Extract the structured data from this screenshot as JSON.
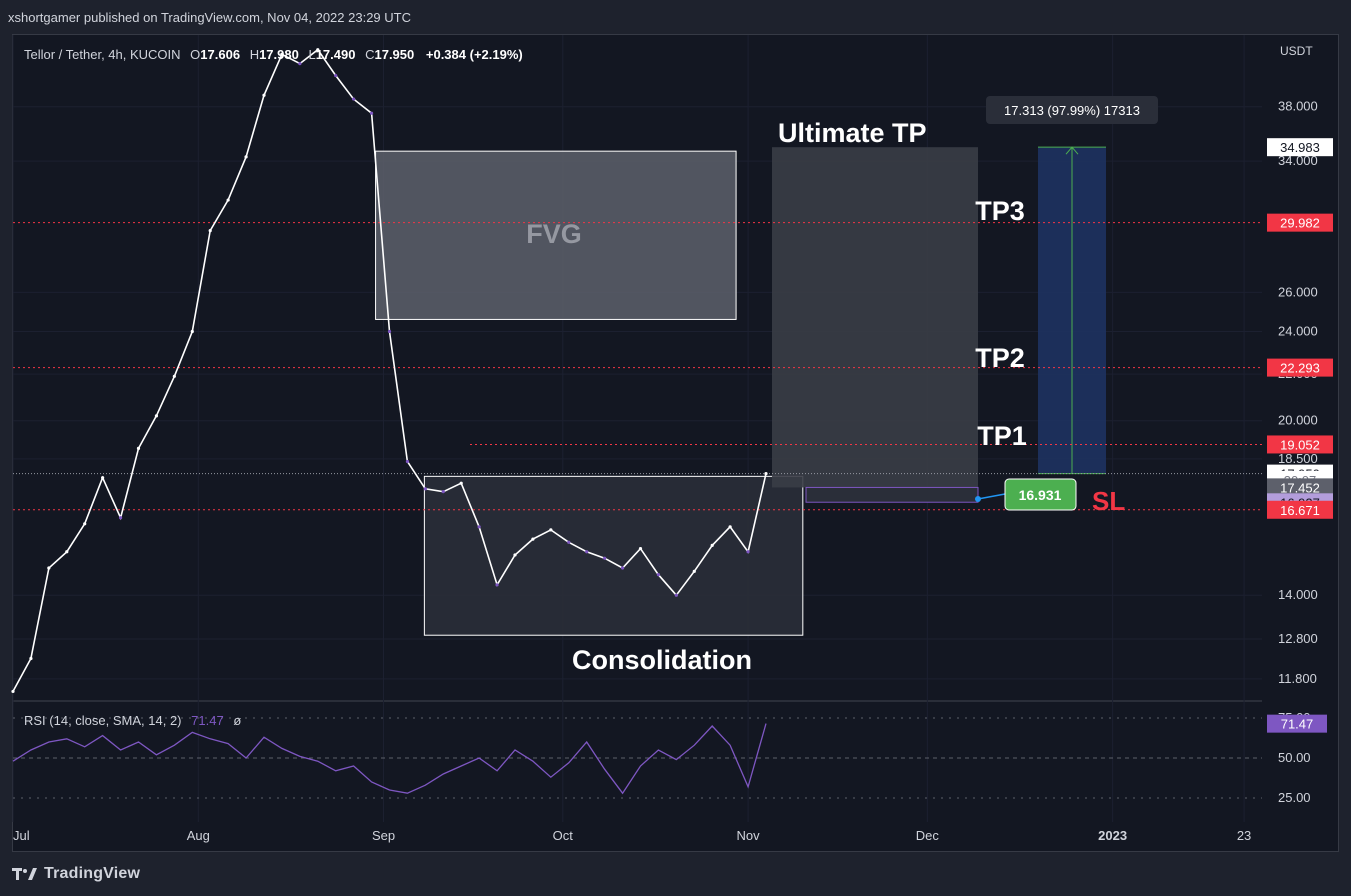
{
  "publisher": "xshortgamer published on TradingView.com, Nov 04, 2022 23:29 UTC",
  "symbol_line": {
    "name": "Tellor / Tether, 4h, KUCOIN",
    "open_label": "O",
    "open": "17.606",
    "high_label": "H",
    "high": "17.980",
    "low_label": "L",
    "low": "17.490",
    "close_label": "C",
    "close": "17.950",
    "change": "+0.384 (+2.19%)"
  },
  "currency": "USDT",
  "annotations": {
    "fvg": "FVG",
    "consolidation": "Consolidation",
    "ultimate_tp": "Ultimate TP",
    "tp3": "TP3",
    "tp2": "TP2",
    "tp1": "TP1",
    "sl": "SL",
    "measure_label": "17.313 (97.99%) 17313",
    "entry_badge": "16.931"
  },
  "price_badges": [
    {
      "key": "ultimate",
      "text": "34.983",
      "value": 34.983,
      "bg": "#ffffff",
      "fg": "#131722"
    },
    {
      "key": "tp3",
      "text": "29.982",
      "value": 29.982,
      "bg": "#f23645",
      "fg": "#ffffff"
    },
    {
      "key": "tp2",
      "text": "22.293",
      "value": 22.293,
      "bg": "#f23645",
      "fg": "#ffffff"
    },
    {
      "key": "tp1",
      "text": "19.052",
      "value": 19.052,
      "bg": "#f23645",
      "fg": "#ffffff"
    },
    {
      "key": "last",
      "text": "17.950",
      "value": 17.95,
      "bg": "#ffffff",
      "fg": "#131722"
    },
    {
      "key": "countdown",
      "text": "30:07",
      "value": 17.72,
      "bg": "#ffffff",
      "fg": "#787b86"
    },
    {
      "key": "level",
      "text": "17.452",
      "value": 17.452,
      "bg": "#5d606b",
      "fg": "#ffffff"
    },
    {
      "key": "entry",
      "text": "16.927",
      "value": 16.927,
      "bg": "#b39ddb",
      "fg": "#131722"
    },
    {
      "key": "sl",
      "text": "16.671",
      "value": 16.671,
      "bg": "#f23645",
      "fg": "#ffffff"
    }
  ],
  "rsi": {
    "label": "RSI (14, close, SMA, 14, 2)",
    "value": "71.47",
    "extra": "ø",
    "badge": "71.47",
    "ticks": [
      "75.00",
      "50.00",
      "25.00"
    ],
    "color": "#7e57c2"
  },
  "footer": "TradingView",
  "colors": {
    "bg": "#131722",
    "grid": "#1c2030",
    "candle": "#ffffff",
    "candle_down": "#7e57c2",
    "red": "#f23645",
    "green": "#4caf50",
    "fvg_fill": "#5d606b",
    "measure_fill": "#1e3260"
  },
  "chart_data": {
    "type": "line",
    "title": "Tellor / Tether, 4h, KUCOIN",
    "y_scale": "log",
    "ylim": [
      11.3,
      44.0
    ],
    "y_ticks": [
      38.0,
      34.0,
      26.0,
      24.0,
      22.0,
      20.0,
      18.5,
      14.0,
      12.8,
      11.8
    ],
    "y_tick_labels": [
      "38.000",
      "34.000",
      "26.000",
      "24.000",
      "22.000",
      "20.000",
      "18.500",
      "14.000",
      "12.800",
      "11.800"
    ],
    "x_ticks": [
      "Jul",
      "Aug",
      "Sep",
      "Oct",
      "Nov",
      "Dec",
      "2023",
      "23"
    ],
    "x_tick_dates": [
      "2022-07-01",
      "2022-08-01",
      "2022-09-01",
      "2022-10-01",
      "2022-11-01",
      "2022-12-01",
      "2023-01-01",
      "2023-01-23"
    ],
    "xlim": [
      "2022-07-01",
      "2023-01-26"
    ],
    "series": [
      {
        "dates": [
          "2022-07-01",
          "2022-07-04",
          "2022-07-07",
          "2022-07-10",
          "2022-07-13",
          "2022-07-16",
          "2022-07-19",
          "2022-07-22",
          "2022-07-25",
          "2022-07-28",
          "2022-07-31",
          "2022-08-03",
          "2022-08-06",
          "2022-08-09",
          "2022-08-12",
          "2022-08-15",
          "2022-08-18",
          "2022-08-21",
          "2022-08-24",
          "2022-08-27",
          "2022-08-30",
          "2022-09-02",
          "2022-09-05",
          "2022-09-08",
          "2022-09-11",
          "2022-09-14",
          "2022-09-17",
          "2022-09-20",
          "2022-09-23",
          "2022-09-26",
          "2022-09-29",
          "2022-10-02",
          "2022-10-05",
          "2022-10-08",
          "2022-10-11",
          "2022-10-14",
          "2022-10-17",
          "2022-10-20",
          "2022-10-23",
          "2022-10-26",
          "2022-10-29",
          "2022-11-01",
          "2022-11-04"
        ],
        "values": [
          11.5,
          12.3,
          14.8,
          15.3,
          16.2,
          17.8,
          16.4,
          18.9,
          20.2,
          21.9,
          24.0,
          29.5,
          31.4,
          34.3,
          38.9,
          42.3,
          41.5,
          42.7,
          40.5,
          38.6,
          37.5,
          24.0,
          18.4,
          17.4,
          17.3,
          17.6,
          16.1,
          14.3,
          15.2,
          15.7,
          16.0,
          15.6,
          15.3,
          15.1,
          14.8,
          15.4,
          14.6,
          14.0,
          14.7,
          15.5,
          16.1,
          15.3,
          17.95
        ]
      }
    ],
    "rsi_values": [
      48,
      55,
      60,
      62,
      57,
      64,
      55,
      60,
      52,
      58,
      66,
      62,
      59,
      50,
      63,
      56,
      51,
      48,
      42,
      45,
      35,
      30,
      28,
      33,
      40,
      45,
      50,
      42,
      55,
      48,
      38,
      47,
      60,
      43,
      28,
      45,
      55,
      49,
      58,
      70,
      58,
      32,
      71.47
    ],
    "levels": [
      {
        "name": "Ultimate TP",
        "value": 34.983
      },
      {
        "name": "TP3",
        "value": 29.982
      },
      {
        "name": "TP2",
        "value": 22.293
      },
      {
        "name": "TP1",
        "value": 19.052
      },
      {
        "name": "SL",
        "value": 16.671
      }
    ],
    "zones": [
      {
        "name": "FVG",
        "from": "2022-08-30",
        "to": "2022-10-31",
        "low": 24.6,
        "high": 34.7
      },
      {
        "name": "Consolidation",
        "from": "2022-09-07",
        "to": "2022-11-11",
        "low": 12.9,
        "high": 17.85
      }
    ]
  }
}
